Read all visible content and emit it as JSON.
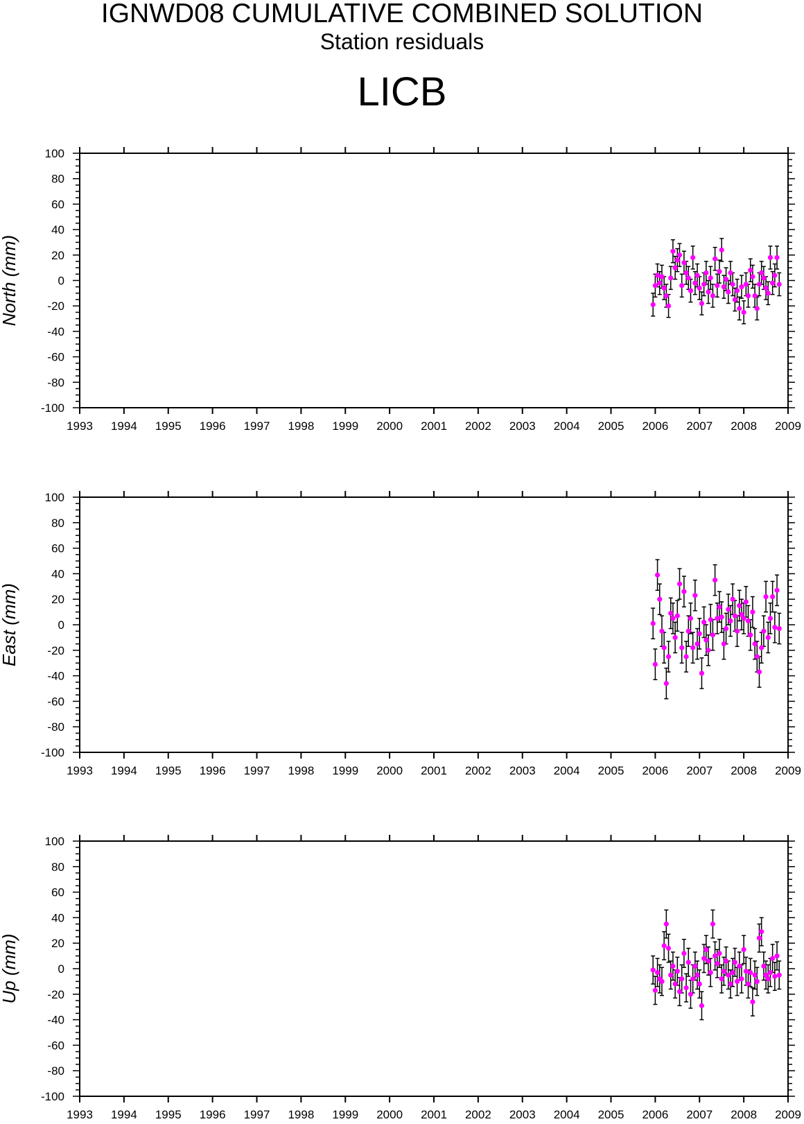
{
  "header": {
    "title": "IGNWD08 CUMULATIVE COMBINED SOLUTION",
    "subtitle": "Station residuals",
    "station": "LICB"
  },
  "colors": {
    "point": "#ff00ff",
    "error_bar": "#000000",
    "axis": "#000000"
  },
  "chart_data": [
    {
      "type": "scatter",
      "ylabel": "North (mm)",
      "xlim": [
        1993,
        2009
      ],
      "ylim": [
        -100,
        100
      ],
      "x_ticks": [
        "1993",
        "1994",
        "1995",
        "1996",
        "1997",
        "1998",
        "1999",
        "2000",
        "2001",
        "2002",
        "2003",
        "2004",
        "2005",
        "2006",
        "2007",
        "2008",
        "2009"
      ],
      "y_ticks": [
        "100",
        "80",
        "60",
        "40",
        "20",
        "0",
        "-20",
        "-40",
        "-60",
        "-80",
        "-100"
      ],
      "grid": false,
      "series": [
        {
          "error_bar_mm": 9,
          "x": [
            2005.95,
            2006.0,
            2006.05,
            2006.1,
            2006.15,
            2006.2,
            2006.25,
            2006.3,
            2006.35,
            2006.4,
            2006.45,
            2006.5,
            2006.55,
            2006.6,
            2006.65,
            2006.7,
            2006.75,
            2006.8,
            2006.85,
            2006.9,
            2006.95,
            2007.0,
            2007.05,
            2007.1,
            2007.15,
            2007.2,
            2007.25,
            2007.3,
            2007.35,
            2007.4,
            2007.45,
            2007.5,
            2007.55,
            2007.6,
            2007.65,
            2007.7,
            2007.75,
            2007.8,
            2007.85,
            2007.9,
            2007.95,
            2008.0,
            2008.05,
            2008.1,
            2008.15,
            2008.2,
            2008.25,
            2008.3,
            2008.35,
            2008.4,
            2008.45,
            2008.5,
            2008.55,
            2008.6,
            2008.65,
            2008.7,
            2008.75,
            2008.8
          ],
          "y": [
            -19,
            -4,
            4,
            -2,
            3,
            -6,
            -12,
            -20,
            2,
            23,
            10,
            16,
            20,
            -4,
            14,
            6,
            2,
            -8,
            18,
            -2,
            4,
            -6,
            -18,
            -3,
            6,
            -9,
            2,
            -12,
            17,
            -4,
            7,
            24,
            -5,
            1,
            -9,
            6,
            -3,
            -15,
            -8,
            -22,
            -5,
            -25,
            -3,
            -12,
            8,
            3,
            -12,
            -22,
            -3,
            6,
            2,
            -6,
            -10,
            18,
            -2,
            4,
            18,
            -3
          ]
        }
      ]
    },
    {
      "type": "scatter",
      "ylabel": "East (mm)",
      "xlim": [
        1993,
        2009
      ],
      "ylim": [
        -100,
        100
      ],
      "x_ticks": [
        "1993",
        "1994",
        "1995",
        "1996",
        "1997",
        "1998",
        "1999",
        "2000",
        "2001",
        "2002",
        "2003",
        "2004",
        "2005",
        "2006",
        "2007",
        "2008",
        "2009"
      ],
      "y_ticks": [
        "100",
        "80",
        "60",
        "40",
        "20",
        "0",
        "-20",
        "-40",
        "-60",
        "-80",
        "-100"
      ],
      "grid": false,
      "series": [
        {
          "error_bar_mm": 12,
          "x": [
            2005.95,
            2006.0,
            2006.05,
            2006.1,
            2006.15,
            2006.2,
            2006.25,
            2006.3,
            2006.35,
            2006.4,
            2006.45,
            2006.5,
            2006.55,
            2006.6,
            2006.65,
            2006.7,
            2006.75,
            2006.8,
            2006.85,
            2006.9,
            2006.95,
            2007.0,
            2007.05,
            2007.1,
            2007.15,
            2007.2,
            2007.25,
            2007.3,
            2007.35,
            2007.4,
            2007.45,
            2007.5,
            2007.55,
            2007.6,
            2007.65,
            2007.7,
            2007.75,
            2007.8,
            2007.85,
            2007.9,
            2007.95,
            2008.0,
            2008.05,
            2008.1,
            2008.15,
            2008.2,
            2008.25,
            2008.3,
            2008.35,
            2008.4,
            2008.45,
            2008.5,
            2008.55,
            2008.6,
            2008.65,
            2008.7,
            2008.75,
            2008.8
          ],
          "y": [
            1,
            -31,
            39,
            20,
            -5,
            -18,
            -46,
            -25,
            9,
            5,
            -10,
            7,
            32,
            -18,
            26,
            -25,
            -5,
            5,
            -18,
            23,
            -15,
            -7,
            -38,
            2,
            -12,
            -20,
            4,
            -8,
            35,
            5,
            14,
            6,
            -15,
            -3,
            12,
            3,
            20,
            7,
            -5,
            15,
            8,
            5,
            18,
            3,
            -8,
            10,
            -15,
            -25,
            -37,
            -18,
            -5,
            22,
            -10,
            5,
            22,
            -2,
            27,
            -3
          ]
        }
      ]
    },
    {
      "type": "scatter",
      "ylabel": "Up (mm)",
      "xlim": [
        1993,
        2009
      ],
      "ylim": [
        -100,
        100
      ],
      "x_ticks": [
        "1993",
        "1994",
        "1995",
        "1996",
        "1997",
        "1998",
        "1999",
        "2000",
        "2001",
        "2002",
        "2003",
        "2004",
        "2005",
        "2006",
        "2007",
        "2008",
        "2009"
      ],
      "y_ticks": [
        "100",
        "80",
        "60",
        "40",
        "20",
        "0",
        "-20",
        "-40",
        "-60",
        "-80",
        "-100"
      ],
      "grid": false,
      "series": [
        {
          "error_bar_mm": 11,
          "x": [
            2005.95,
            2006.0,
            2006.05,
            2006.1,
            2006.15,
            2006.2,
            2006.25,
            2006.3,
            2006.35,
            2006.4,
            2006.45,
            2006.5,
            2006.55,
            2006.6,
            2006.65,
            2006.7,
            2006.75,
            2006.8,
            2006.85,
            2006.9,
            2006.95,
            2007.0,
            2007.05,
            2007.1,
            2007.15,
            2007.2,
            2007.25,
            2007.3,
            2007.35,
            2007.4,
            2007.45,
            2007.5,
            2007.55,
            2007.6,
            2007.65,
            2007.7,
            2007.75,
            2007.8,
            2007.85,
            2007.9,
            2007.95,
            2008.0,
            2008.05,
            2008.1,
            2008.15,
            2008.2,
            2008.25,
            2008.3,
            2008.35,
            2008.4,
            2008.45,
            2008.5,
            2008.55,
            2008.6,
            2008.65,
            2008.7,
            2008.75,
            2008.8
          ],
          "y": [
            -1,
            -17,
            -3,
            -8,
            -10,
            18,
            35,
            16,
            -5,
            2,
            -12,
            -2,
            -18,
            -8,
            12,
            -15,
            5,
            -20,
            -8,
            2,
            -5,
            -12,
            -29,
            8,
            15,
            6,
            -3,
            35,
            10,
            4,
            12,
            -8,
            -2,
            6,
            -5,
            -12,
            -3,
            5,
            -10,
            2,
            -8,
            15,
            -2,
            -12,
            -3,
            -26,
            -5,
            -10,
            24,
            29,
            2,
            -5,
            -8,
            -3,
            8,
            -6,
            10,
            -5
          ]
        }
      ]
    }
  ]
}
